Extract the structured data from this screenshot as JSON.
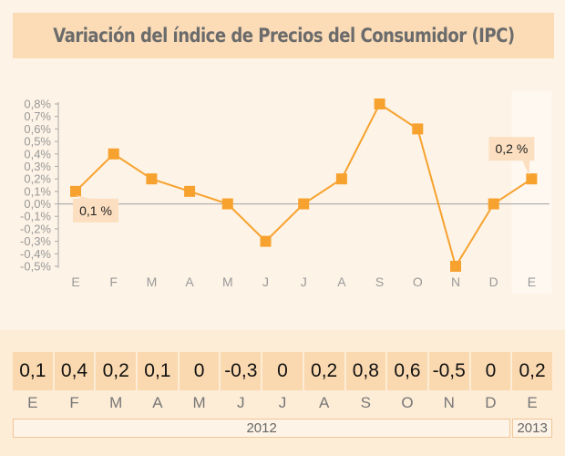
{
  "title": "Variación del índice de Precios del Consumidor (IPC)",
  "colors": {
    "line": "#f7a22e",
    "marker": "#f7a22e",
    "background": "#fdf3e6",
    "title_bg": "#fbdcb7",
    "cell_bg": "#fbd9b0"
  },
  "chart_data": {
    "type": "line",
    "categories": [
      "E",
      "F",
      "M",
      "A",
      "M",
      "J",
      "J",
      "A",
      "S",
      "O",
      "N",
      "D",
      "E"
    ],
    "series": [
      {
        "values": [
          0.1,
          0.4,
          0.2,
          0.1,
          0.0,
          -0.3,
          0.0,
          0.2,
          0.8,
          0.6,
          -0.5,
          0.0,
          0.2
        ]
      }
    ],
    "ylim": [
      -0.5,
      0.8
    ],
    "yticks": [
      "0,8%",
      "0,7%",
      "0,6%",
      "0,5%",
      "0,4%",
      "0,3%",
      "0,2%",
      "0,1%",
      "0,0%",
      "-0,1%",
      "-0,2%",
      "-0,3%",
      "-0,4%",
      "-0,5%"
    ],
    "annotations": [
      {
        "index": 0,
        "text": "0,1 %"
      },
      {
        "index": 12,
        "text": "0,2 %"
      }
    ],
    "highlight_last_column": true,
    "grid": false
  },
  "table": {
    "values": [
      "0,1",
      "0,4",
      "0,2",
      "0,1",
      "0",
      "-0,3",
      "0",
      "0,2",
      "0,8",
      "0,6",
      "-0,5",
      "0",
      "0,2"
    ],
    "months": [
      "E",
      "F",
      "M",
      "A",
      "M",
      "J",
      "J",
      "A",
      "S",
      "O",
      "N",
      "D",
      "E"
    ],
    "years": [
      {
        "label": "2012",
        "span": 12
      },
      {
        "label": "2013",
        "span": 1
      }
    ]
  }
}
